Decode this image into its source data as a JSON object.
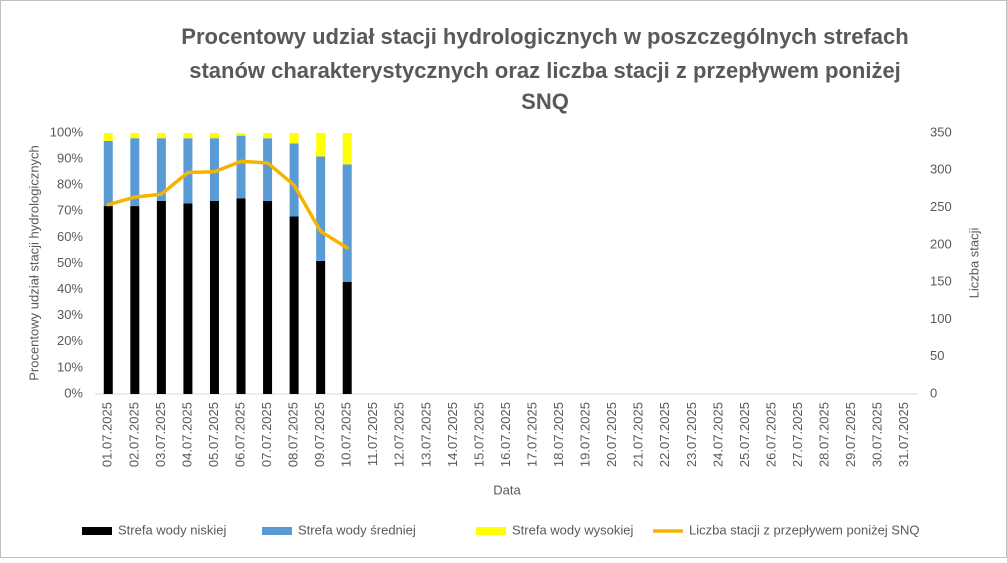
{
  "chart_data": {
    "type": "bar_line",
    "title": [
      "Procentowy udział stacji hydrologicznych w poszczególnych strefach",
      "stanów charakterystycznych oraz liczba stacji z przepływem poniżej",
      "SNQ"
    ],
    "x_label": "Data",
    "y_label": "Procentowy udział stacji hydrologicznych",
    "y2_label": "Liczba stacji",
    "stacked": true,
    "grid": false,
    "legend": "bottom",
    "categories": [
      "01.07.2025",
      "02.07.2025",
      "03.07.2025",
      "04.07.2025",
      "05.07.2025",
      "06.07.2025",
      "07.07.2025",
      "08.07.2025",
      "09.07.2025",
      "10.07.2025",
      "11.07.2025",
      "12.07.2025",
      "13.07.2025",
      "14.07.2025",
      "15.07.2025",
      "16.07.2025",
      "17.07.2025",
      "18.07.2025",
      "19.07.2025",
      "20.07.2025",
      "21.07.2025",
      "22.07.2025",
      "23.07.2025",
      "24.07.2025",
      "25.07.2025",
      "26.07.2025",
      "27.07.2025",
      "28.07.2025",
      "29.07.2025",
      "30.07.2025",
      "31.07.2025"
    ],
    "series": [
      {
        "name": "Strefa wody niskiej",
        "color": "#000000",
        "kind": "bar",
        "values": [
          72,
          72,
          74,
          73,
          74,
          75,
          74,
          68,
          51,
          43,
          null,
          null,
          null,
          null,
          null,
          null,
          null,
          null,
          null,
          null,
          null,
          null,
          null,
          null,
          null,
          null,
          null,
          null,
          null,
          null,
          null
        ]
      },
      {
        "name": "Strefa wody średniej",
        "color": "#5b9bd5",
        "kind": "bar",
        "values": [
          25,
          26,
          24,
          25,
          24,
          24,
          24,
          28,
          40,
          45,
          null,
          null,
          null,
          null,
          null,
          null,
          null,
          null,
          null,
          null,
          null,
          null,
          null,
          null,
          null,
          null,
          null,
          null,
          null,
          null,
          null
        ]
      },
      {
        "name": "Strefa wody wysokiej",
        "color": "#ffff00",
        "kind": "bar",
        "values": [
          3,
          2,
          2,
          2,
          2,
          1,
          2,
          4,
          9,
          12,
          null,
          null,
          null,
          null,
          null,
          null,
          null,
          null,
          null,
          null,
          null,
          null,
          null,
          null,
          null,
          null,
          null,
          null,
          null,
          null,
          null
        ]
      },
      {
        "name": "Liczba stacji z przepływem poniżej SNQ",
        "color": "#f5b400",
        "kind": "line",
        "axis": "y2",
        "values": [
          254,
          264,
          268,
          297,
          298,
          312,
          310,
          280,
          218,
          196,
          null,
          null,
          null,
          null,
          null,
          null,
          null,
          null,
          null,
          null,
          null,
          null,
          null,
          null,
          null,
          null,
          null,
          null,
          null,
          null,
          null
        ]
      }
    ],
    "ylim": [
      0,
      100
    ],
    "yticks": [
      {
        "value": 0,
        "label": "0%"
      },
      {
        "value": 10,
        "label": "10%"
      },
      {
        "value": 20,
        "label": "20%"
      },
      {
        "value": 30,
        "label": "30%"
      },
      {
        "value": 40,
        "label": "40%"
      },
      {
        "value": 50,
        "label": "50%"
      },
      {
        "value": 60,
        "label": "60%"
      },
      {
        "value": 70,
        "label": "70%"
      },
      {
        "value": 80,
        "label": "80%"
      },
      {
        "value": 90,
        "label": "90%"
      },
      {
        "value": 100,
        "label": "100%"
      }
    ],
    "y2lim": [
      0,
      350
    ],
    "y2ticks": [
      0,
      50,
      100,
      150,
      200,
      250,
      300,
      350
    ]
  }
}
